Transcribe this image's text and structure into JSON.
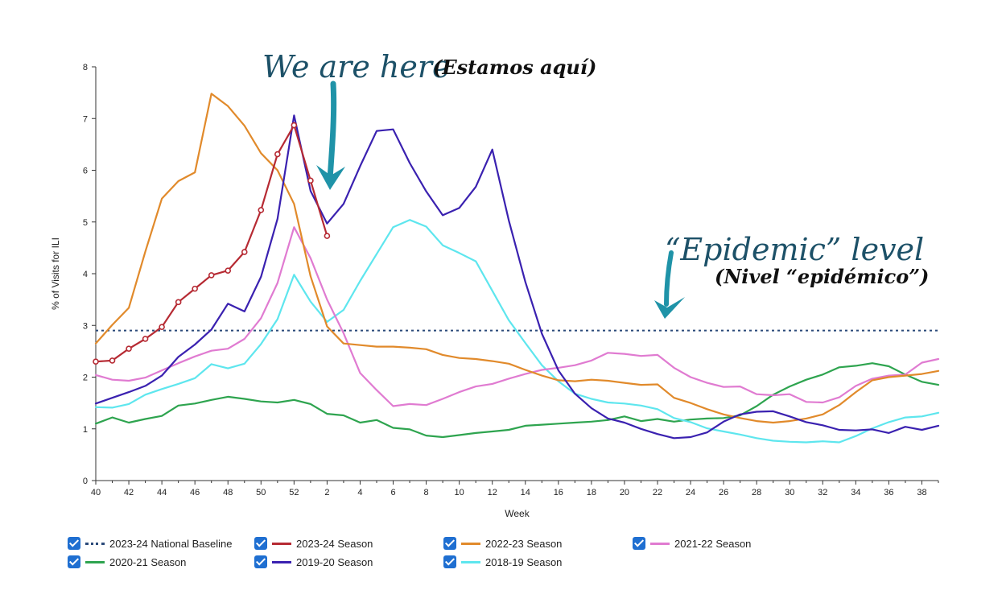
{
  "chart_data": {
    "type": "line",
    "xlabel": "Week",
    "ylabel": "% of Visits for ILI",
    "ylim": [
      0,
      8
    ],
    "y_ticks": [
      0,
      1,
      2,
      3,
      4,
      5,
      6,
      7,
      8
    ],
    "x_tick_labels": [
      "40",
      "42",
      "44",
      "46",
      "48",
      "50",
      "52",
      "2",
      "4",
      "6",
      "8",
      "10",
      "12",
      "14",
      "16",
      "18",
      "20",
      "22",
      "24",
      "26",
      "28",
      "30",
      "32",
      "34",
      "36",
      "38"
    ],
    "weeks": [
      40,
      41,
      42,
      43,
      44,
      45,
      46,
      47,
      48,
      49,
      50,
      51,
      52,
      1,
      2,
      3,
      4,
      5,
      6,
      7,
      8,
      9,
      10,
      11,
      12,
      13,
      14,
      15,
      16,
      17,
      18,
      19,
      20,
      21,
      22,
      23,
      24,
      25,
      26,
      27,
      28,
      29,
      30,
      31,
      32,
      33,
      34,
      35,
      36,
      37,
      38,
      39
    ],
    "baseline": {
      "name": "2023-24 National Baseline",
      "value": 2.9,
      "color": "#2b4a7a"
    },
    "series": [
      {
        "name": "2020-21 Season",
        "color": "#2ea44f",
        "values": [
          1.1,
          1.22,
          1.12,
          1.19,
          1.25,
          1.45,
          1.49,
          1.56,
          1.62,
          1.58,
          1.53,
          1.51,
          1.56,
          1.48,
          1.29,
          1.26,
          1.12,
          1.17,
          1.02,
          0.99,
          0.87,
          0.84,
          0.88,
          0.92,
          0.95,
          0.98,
          1.06,
          1.08,
          1.1,
          1.12,
          1.14,
          1.17,
          1.24,
          1.15,
          1.19,
          1.14,
          1.18,
          1.2,
          1.21,
          1.26,
          1.44,
          1.66,
          1.82,
          1.95,
          2.05,
          2.19,
          2.22,
          2.27,
          2.21,
          2.05,
          1.91,
          1.85
        ]
      },
      {
        "name": "2018-19 Season",
        "color": "#5ee6ee",
        "values": [
          1.42,
          1.41,
          1.48,
          1.66,
          1.77,
          1.87,
          1.98,
          2.25,
          2.17,
          2.26,
          2.64,
          3.12,
          3.98,
          3.46,
          3.07,
          3.3,
          3.86,
          4.38,
          4.9,
          5.04,
          4.91,
          4.55,
          4.4,
          4.24,
          3.67,
          3.1,
          2.66,
          2.23,
          1.92,
          1.68,
          1.58,
          1.51,
          1.49,
          1.45,
          1.38,
          1.21,
          1.13,
          1.01,
          0.95,
          0.89,
          0.82,
          0.77,
          0.75,
          0.74,
          0.76,
          0.74,
          0.86,
          1.01,
          1.13,
          1.22,
          1.24,
          1.31
        ]
      },
      {
        "name": "2021-22 Season",
        "color": "#e07bd1",
        "values": [
          2.04,
          1.95,
          1.93,
          1.99,
          2.13,
          2.27,
          2.4,
          2.51,
          2.55,
          2.74,
          3.14,
          3.82,
          4.9,
          4.3,
          3.5,
          2.85,
          2.08,
          1.75,
          1.44,
          1.48,
          1.46,
          1.58,
          1.71,
          1.82,
          1.87,
          1.97,
          2.06,
          2.14,
          2.18,
          2.23,
          2.32,
          2.47,
          2.45,
          2.41,
          2.43,
          2.18,
          2.0,
          1.89,
          1.81,
          1.82,
          1.67,
          1.65,
          1.67,
          1.52,
          1.51,
          1.61,
          1.83,
          1.97,
          2.03,
          2.05,
          2.28,
          2.35
        ]
      },
      {
        "name": "2022-23 Season",
        "color": "#e18a2b",
        "values": [
          2.65,
          3.01,
          3.34,
          4.43,
          5.45,
          5.79,
          5.96,
          7.48,
          7.24,
          6.86,
          6.33,
          6.0,
          5.35,
          3.95,
          2.98,
          2.65,
          2.62,
          2.59,
          2.59,
          2.57,
          2.54,
          2.43,
          2.37,
          2.35,
          2.31,
          2.26,
          2.14,
          2.03,
          1.94,
          1.92,
          1.95,
          1.93,
          1.89,
          1.85,
          1.86,
          1.6,
          1.5,
          1.38,
          1.28,
          1.21,
          1.15,
          1.12,
          1.15,
          1.2,
          1.28,
          1.46,
          1.71,
          1.94,
          2.0,
          2.03,
          2.06,
          2.12
        ]
      },
      {
        "name": "2019-20 Season",
        "color": "#3a21b0",
        "values": [
          1.49,
          1.6,
          1.71,
          1.83,
          2.03,
          2.39,
          2.63,
          2.92,
          3.42,
          3.27,
          3.94,
          5.06,
          7.06,
          5.6,
          4.97,
          5.35,
          6.08,
          6.76,
          6.79,
          6.14,
          5.59,
          5.13,
          5.27,
          5.68,
          6.4,
          5.03,
          3.84,
          2.84,
          2.13,
          1.68,
          1.4,
          1.2,
          1.12,
          1.0,
          0.9,
          0.82,
          0.84,
          0.93,
          1.14,
          1.28,
          1.33,
          1.34,
          1.24,
          1.13,
          1.07,
          0.98,
          0.97,
          0.99,
          0.92,
          1.04,
          0.98,
          1.06
        ]
      },
      {
        "name": "2023-24 Season",
        "color": "#b62a33",
        "markers": true,
        "values": [
          2.3,
          2.32,
          2.55,
          2.74,
          2.97,
          3.45,
          3.71,
          3.97,
          4.06,
          4.42,
          5.23,
          6.31,
          6.87,
          5.8,
          4.73
        ]
      }
    ],
    "legend": [
      "2023-24 National Baseline",
      "2023-24 Season",
      "2022-23 Season",
      "2021-22 Season",
      "2020-21 Season",
      "2019-20 Season",
      "2018-19 Season"
    ],
    "legend_position": "bottom"
  },
  "annotations": {
    "current": {
      "main": "We are here",
      "sub": "(Estamos aquí)",
      "color": "#1d5168",
      "arrow_color": "#1f93a8"
    },
    "epidemic": {
      "main": "“Epidemic” level",
      "sub": "(Nivel “epidémico”)",
      "color": "#1d5168",
      "arrow_color": "#1f93a8"
    }
  }
}
